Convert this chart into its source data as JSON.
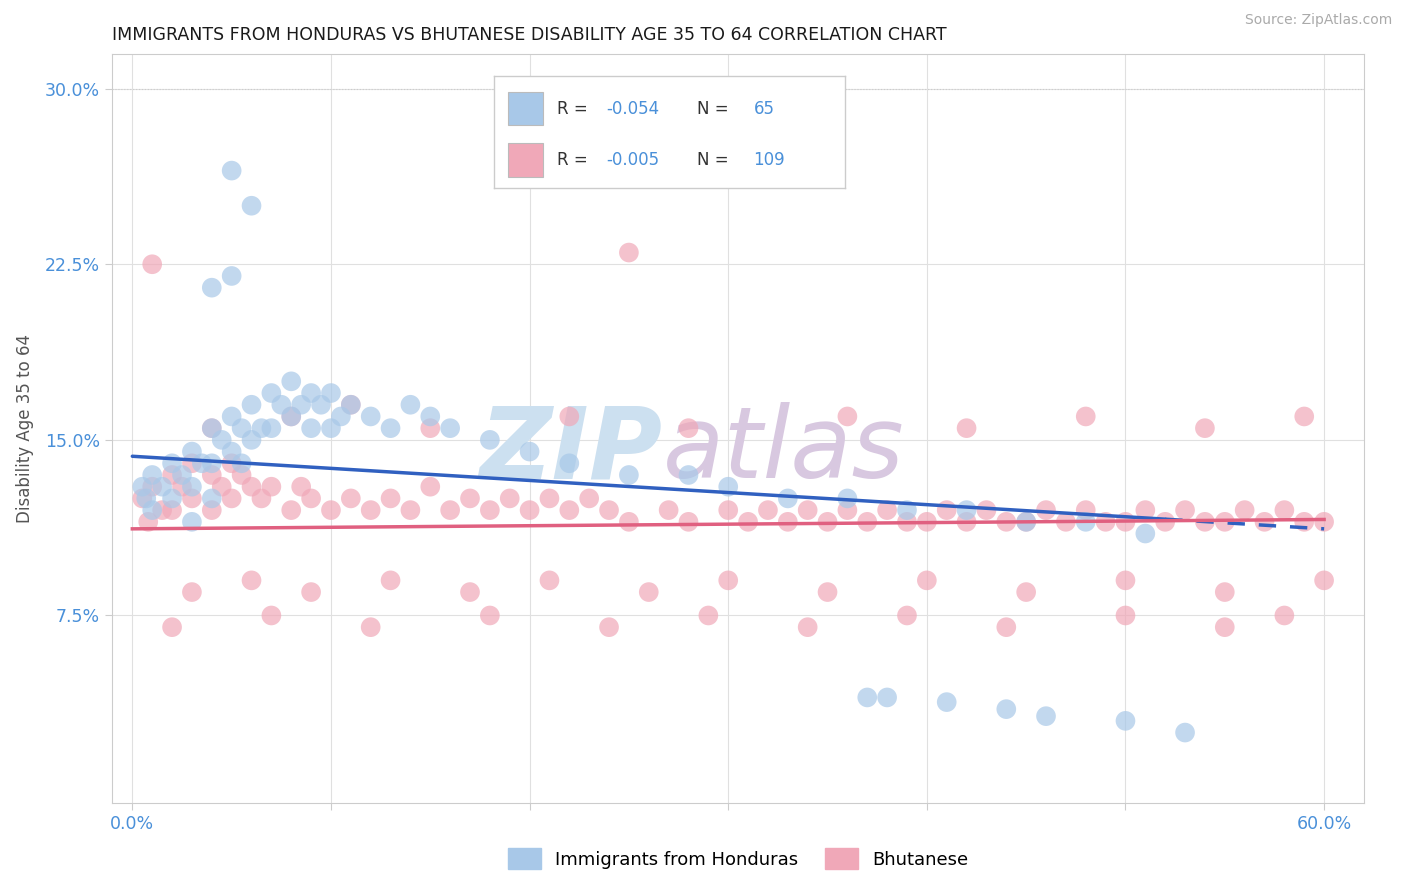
{
  "title": "IMMIGRANTS FROM HONDURAS VS BHUTANESE DISABILITY AGE 35 TO 64 CORRELATION CHART",
  "source": "Source: ZipAtlas.com",
  "ylabel": "Disability Age 35 to 64",
  "xlim": [
    -0.01,
    0.62
  ],
  "ylim": [
    -0.005,
    0.315
  ],
  "xtick_vals": [
    0.0,
    0.1,
    0.2,
    0.3,
    0.4,
    0.5,
    0.6
  ],
  "xticklabels": [
    "0.0%",
    "",
    "",
    "",
    "",
    "",
    "60.0%"
  ],
  "ytick_vals": [
    0.075,
    0.15,
    0.225,
    0.3
  ],
  "yticklabels": [
    "7.5%",
    "15.0%",
    "22.5%",
    "30.0%"
  ],
  "legend_R1": "-0.054",
  "legend_N1": "65",
  "legend_R2": "-0.005",
  "legend_N2": "109",
  "col_hon": "#a8c8e8",
  "col_bhu": "#f0a8b8",
  "col_tline_hon": "#3060c0",
  "col_tline_bhu": "#e06080",
  "col_grid": "#e0e0e0",
  "col_tick": "#4a90d9",
  "col_title": "#1a1a1a",
  "col_source": "#aaaaaa",
  "col_axis_label": "#555555",
  "col_watermark": "#cce0f0",
  "watermark_zip": "ZIP",
  "watermark_atlas": "atlas",
  "hon_x": [
    0.005,
    0.007,
    0.01,
    0.01,
    0.015,
    0.02,
    0.02,
    0.025,
    0.03,
    0.03,
    0.03,
    0.035,
    0.04,
    0.04,
    0.04,
    0.045,
    0.05,
    0.05,
    0.055,
    0.055,
    0.06,
    0.06,
    0.065,
    0.07,
    0.07,
    0.075,
    0.08,
    0.08,
    0.085,
    0.09,
    0.09,
    0.095,
    0.1,
    0.1,
    0.105,
    0.11,
    0.12,
    0.13,
    0.14,
    0.15,
    0.05,
    0.06,
    0.16,
    0.18,
    0.2,
    0.22,
    0.25,
    0.28,
    0.3,
    0.33,
    0.36,
    0.39,
    0.42,
    0.45,
    0.48,
    0.51,
    0.04,
    0.05,
    0.38,
    0.41,
    0.44,
    0.37,
    0.5,
    0.53,
    0.46
  ],
  "hon_y": [
    0.13,
    0.125,
    0.135,
    0.12,
    0.13,
    0.14,
    0.125,
    0.135,
    0.145,
    0.13,
    0.115,
    0.14,
    0.155,
    0.14,
    0.125,
    0.15,
    0.16,
    0.145,
    0.155,
    0.14,
    0.165,
    0.15,
    0.155,
    0.17,
    0.155,
    0.165,
    0.175,
    0.16,
    0.165,
    0.17,
    0.155,
    0.165,
    0.17,
    0.155,
    0.16,
    0.165,
    0.16,
    0.155,
    0.165,
    0.16,
    0.265,
    0.25,
    0.155,
    0.15,
    0.145,
    0.14,
    0.135,
    0.135,
    0.13,
    0.125,
    0.125,
    0.12,
    0.12,
    0.115,
    0.115,
    0.11,
    0.215,
    0.22,
    0.04,
    0.038,
    0.035,
    0.04,
    0.03,
    0.025,
    0.032
  ],
  "bhu_x": [
    0.005,
    0.008,
    0.01,
    0.015,
    0.02,
    0.02,
    0.025,
    0.03,
    0.03,
    0.04,
    0.04,
    0.045,
    0.05,
    0.05,
    0.055,
    0.06,
    0.065,
    0.07,
    0.08,
    0.085,
    0.09,
    0.1,
    0.11,
    0.12,
    0.13,
    0.14,
    0.15,
    0.16,
    0.17,
    0.18,
    0.19,
    0.2,
    0.21,
    0.22,
    0.23,
    0.24,
    0.25,
    0.27,
    0.28,
    0.3,
    0.31,
    0.32,
    0.33,
    0.34,
    0.35,
    0.36,
    0.37,
    0.38,
    0.39,
    0.4,
    0.41,
    0.42,
    0.43,
    0.44,
    0.45,
    0.46,
    0.47,
    0.48,
    0.49,
    0.5,
    0.51,
    0.52,
    0.53,
    0.54,
    0.55,
    0.56,
    0.57,
    0.58,
    0.59,
    0.6,
    0.03,
    0.06,
    0.09,
    0.13,
    0.17,
    0.21,
    0.26,
    0.3,
    0.35,
    0.4,
    0.45,
    0.5,
    0.55,
    0.6,
    0.02,
    0.07,
    0.12,
    0.18,
    0.24,
    0.29,
    0.34,
    0.39,
    0.44,
    0.5,
    0.55,
    0.58,
    0.04,
    0.08,
    0.15,
    0.22,
    0.28,
    0.36,
    0.42,
    0.48,
    0.54,
    0.59,
    0.01,
    0.11,
    0.25
  ],
  "bhu_y": [
    0.125,
    0.115,
    0.13,
    0.12,
    0.135,
    0.12,
    0.13,
    0.14,
    0.125,
    0.135,
    0.12,
    0.13,
    0.14,
    0.125,
    0.135,
    0.13,
    0.125,
    0.13,
    0.12,
    0.13,
    0.125,
    0.12,
    0.125,
    0.12,
    0.125,
    0.12,
    0.13,
    0.12,
    0.125,
    0.12,
    0.125,
    0.12,
    0.125,
    0.12,
    0.125,
    0.12,
    0.115,
    0.12,
    0.115,
    0.12,
    0.115,
    0.12,
    0.115,
    0.12,
    0.115,
    0.12,
    0.115,
    0.12,
    0.115,
    0.115,
    0.12,
    0.115,
    0.12,
    0.115,
    0.115,
    0.12,
    0.115,
    0.12,
    0.115,
    0.115,
    0.12,
    0.115,
    0.12,
    0.115,
    0.115,
    0.12,
    0.115,
    0.12,
    0.115,
    0.115,
    0.085,
    0.09,
    0.085,
    0.09,
    0.085,
    0.09,
    0.085,
    0.09,
    0.085,
    0.09,
    0.085,
    0.09,
    0.085,
    0.09,
    0.07,
    0.075,
    0.07,
    0.075,
    0.07,
    0.075,
    0.07,
    0.075,
    0.07,
    0.075,
    0.07,
    0.075,
    0.155,
    0.16,
    0.155,
    0.16,
    0.155,
    0.16,
    0.155,
    0.16,
    0.155,
    0.16,
    0.225,
    0.165,
    0.23
  ],
  "tline_hon_x0": 0.0,
  "tline_hon_x1": 0.6,
  "tline_hon_y0": 0.143,
  "tline_hon_y1": 0.112,
  "tline_hon_solid_end": 0.52,
  "tline_bhu_x0": 0.0,
  "tline_bhu_x1": 0.6,
  "tline_bhu_y0": 0.112,
  "tline_bhu_y1": 0.116
}
